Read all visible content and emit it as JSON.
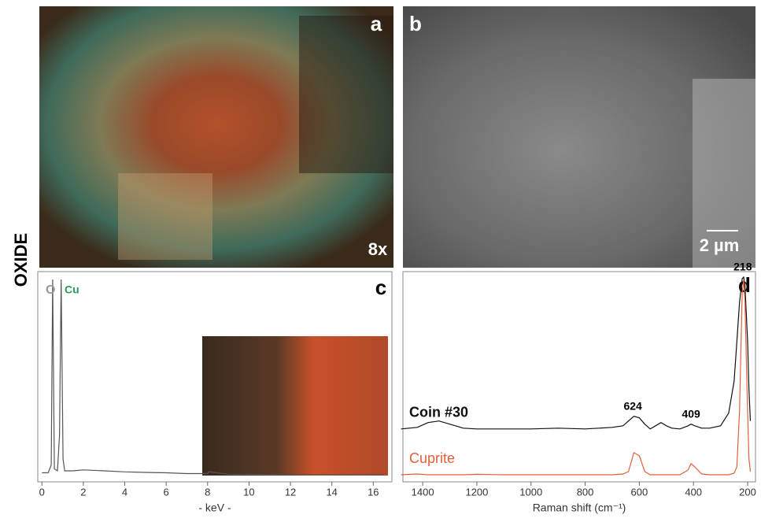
{
  "side_label": "OXIDE",
  "panels": {
    "a": {
      "label": "a",
      "magnification": "8x"
    },
    "b": {
      "label": "b",
      "scale_bar": "2 µm"
    }
  },
  "chart_data": [
    {
      "type": "line",
      "panel_label": "c",
      "xlabel": "- keV -",
      "xlim": [
        -0.2,
        16.9
      ],
      "xticks": [
        0,
        2,
        4,
        6,
        8,
        10,
        12,
        14,
        16
      ],
      "annotations": [
        {
          "text": "O",
          "color": "#999999"
        },
        {
          "text": "Cu",
          "color": "#2a9a5a"
        }
      ],
      "x": [
        0,
        0.3,
        0.45,
        0.52,
        0.6,
        0.75,
        0.85,
        0.93,
        1.02,
        1.1,
        1.5,
        2,
        3,
        4,
        5,
        6,
        7,
        8,
        8.05,
        9,
        10,
        12,
        16.5
      ],
      "series": [
        {
          "color": "#555555",
          "values": [
            1,
            1,
            5,
            100,
            3,
            2,
            20,
            100,
            8,
            2,
            2,
            2.5,
            2,
            1.5,
            1.2,
            1,
            0.6,
            0.6,
            1.5,
            0.3,
            0.2,
            0.1,
            0
          ]
        }
      ]
    },
    {
      "type": "line",
      "panel_label": "d",
      "xlabel": "Raman shift (cm⁻¹)",
      "xlim": [
        1473,
        171
      ],
      "xticks": [
        1400,
        1200,
        1000,
        800,
        600,
        400,
        200
      ],
      "peak_labels": [
        624,
        409,
        218
      ],
      "x": [
        1480,
        1420,
        1380,
        1340,
        1300,
        1250,
        1200,
        1100,
        1000,
        900,
        800,
        700,
        660,
        640,
        620,
        600,
        580,
        560,
        540,
        520,
        500,
        480,
        450,
        420,
        409,
        395,
        370,
        340,
        300,
        270,
        250,
        240,
        230,
        220,
        215,
        210,
        200,
        195,
        190
      ],
      "series": [
        {
          "name": "Coin #30",
          "color": "#111111",
          "values": [
            29,
            30,
            33,
            34,
            32,
            29.5,
            29,
            29,
            29,
            29.5,
            29,
            30,
            31,
            34,
            37,
            36,
            32,
            29,
            31,
            33,
            31,
            29.5,
            29,
            31,
            32,
            31,
            29.5,
            29.5,
            31,
            39,
            59,
            84,
            109,
            124,
            125,
            120,
            84,
            54,
            34
          ]
        },
        {
          "name": "Cuprite",
          "color": "#e0603a",
          "values": [
            0,
            0.5,
            0,
            0,
            0,
            0,
            0.3,
            0,
            0,
            0,
            0,
            0,
            0.5,
            2,
            14,
            12,
            2,
            0,
            0,
            0,
            0,
            0,
            0,
            3,
            7,
            5,
            0.5,
            0,
            0,
            0,
            1,
            5,
            40,
            115,
            123,
            110,
            40,
            10,
            2
          ]
        }
      ]
    }
  ]
}
